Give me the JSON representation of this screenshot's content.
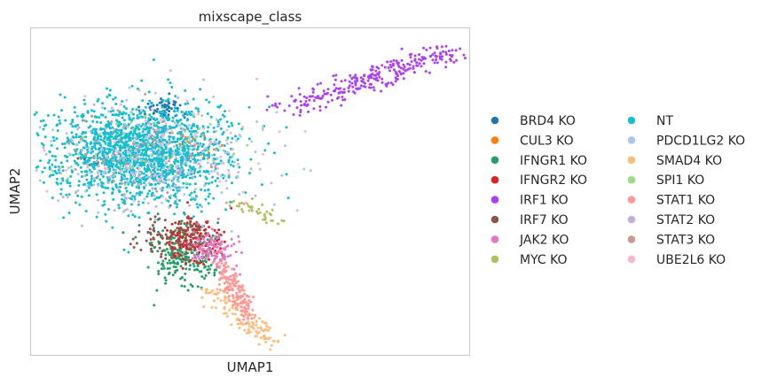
{
  "chart_data": {
    "type": "scatter",
    "title": "mixscape_class",
    "xlabel": "UMAP1",
    "ylabel": "UMAP2",
    "xlim": [
      0,
      100
    ],
    "ylim": [
      0,
      100
    ],
    "grid": false,
    "ticks": false,
    "legend_placement": "right, outside plot, two columns",
    "point_size_note": "small dots",
    "series": [
      {
        "name": "BRD4 KO",
        "color": "#1f77b4",
        "clusters": [
          {
            "cx": 30,
            "cy": 75,
            "sx": 2.5,
            "sy": 2.0,
            "n": 60
          }
        ]
      },
      {
        "name": "CUL3 KO",
        "color": "#ff7f0e",
        "clusters": [
          {
            "cx": 37,
            "cy": 64,
            "sx": 3.0,
            "sy": 2.0,
            "n": 25
          }
        ]
      },
      {
        "name": "IFNGR1 KO",
        "color": "#279e68",
        "clusters": [
          {
            "cx": 35,
            "cy": 30,
            "sx": 3.5,
            "sy": 5.0,
            "n": 230
          }
        ]
      },
      {
        "name": "IFNGR2 KO",
        "color": "#d62728",
        "clusters": [
          {
            "cx": 37,
            "cy": 35,
            "sx": 3.5,
            "sy": 3.5,
            "n": 160
          }
        ]
      },
      {
        "name": "IRF1 KO",
        "color": "#aa40fc",
        "clusters": [
          {
            "cx": 80,
            "cy": 86,
            "sx": 8.0,
            "sy": 3.0,
            "n": 280,
            "along": [
              60,
              76,
              96,
              93
            ]
          }
        ]
      },
      {
        "name": "IRF7 KO",
        "color": "#8c564b",
        "clusters": [
          {
            "cx": 34,
            "cy": 36,
            "sx": 4.0,
            "sy": 3.5,
            "n": 90
          },
          {
            "cx": 14,
            "cy": 60,
            "sx": 2.0,
            "sy": 1.5,
            "n": 10
          }
        ]
      },
      {
        "name": "JAK2 KO",
        "color": "#e377c2",
        "clusters": [
          {
            "cx": 42,
            "cy": 33,
            "sx": 2.8,
            "sy": 3.0,
            "n": 110
          }
        ]
      },
      {
        "name": "MYC KO",
        "color": "#b5bd61",
        "clusters": [
          {
            "cx": 52,
            "cy": 44,
            "sx": 4.0,
            "sy": 1.4,
            "n": 40,
            "along": [
              47,
              47,
              57,
              40
            ]
          }
        ]
      },
      {
        "name": "NT",
        "color": "#17becf",
        "clusters": [
          {
            "cx": 25,
            "cy": 62,
            "sx": 10.0,
            "sy": 7.5,
            "n": 1700
          }
        ]
      },
      {
        "name": "PDCD1LG2 KO",
        "color": "#aec7e8",
        "clusters": [
          {
            "cx": 30,
            "cy": 60,
            "sx": 12.0,
            "sy": 8.5,
            "n": 220
          }
        ]
      },
      {
        "name": "SMAD4 KO",
        "color": "#ffbb78",
        "clusters": [
          {
            "cx": 47,
            "cy": 13,
            "sx": 5.0,
            "sy": 2.5,
            "n": 120,
            "along": [
              40,
              20,
              55,
              4
            ]
          }
        ]
      },
      {
        "name": "SPI1 KO",
        "color": "#98df8a",
        "clusters": [
          {
            "cx": 27,
            "cy": 62,
            "sx": 10.0,
            "sy": 7.0,
            "n": 40
          }
        ]
      },
      {
        "name": "STAT1 KO",
        "color": "#ff9896",
        "clusters": [
          {
            "cx": 46,
            "cy": 22,
            "sx": 3.0,
            "sy": 4.0,
            "n": 150,
            "along": [
              43,
              28,
              50,
              12
            ]
          }
        ]
      },
      {
        "name": "STAT2 KO",
        "color": "#c5b0d5",
        "clusters": [
          {
            "cx": 28,
            "cy": 58,
            "sx": 11.0,
            "sy": 8.0,
            "n": 80
          }
        ]
      },
      {
        "name": "STAT3 KO",
        "color": "#c49c94",
        "clusters": [
          {
            "cx": 26,
            "cy": 60,
            "sx": 10.0,
            "sy": 7.0,
            "n": 50
          }
        ]
      },
      {
        "name": "UBE2L6 KO",
        "color": "#f7b6d2",
        "clusters": [
          {
            "cx": 30,
            "cy": 62,
            "sx": 11.0,
            "sy": 8.0,
            "n": 90
          }
        ]
      }
    ]
  }
}
